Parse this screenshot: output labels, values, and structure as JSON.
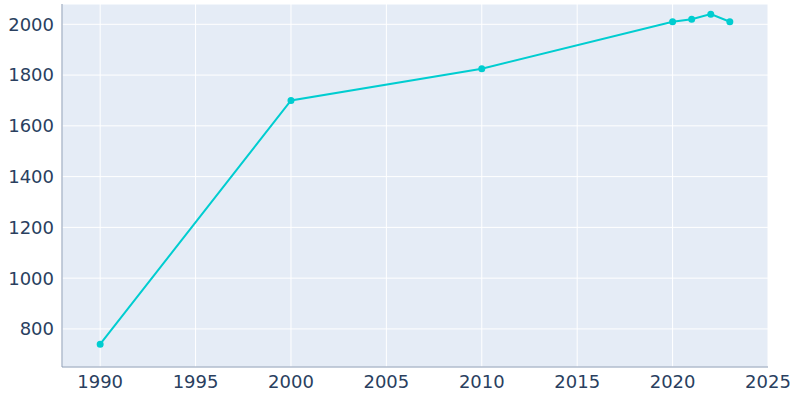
{
  "chart_data": {
    "type": "line",
    "x": [
      1990,
      2000,
      2010,
      2020,
      2021,
      2022,
      2023
    ],
    "values": [
      740,
      1700,
      1825,
      2010,
      2020,
      2040,
      2010
    ],
    "color": "#00cdd0",
    "marker": "circle",
    "xlim": [
      1988,
      2025
    ],
    "xticks": [
      1990,
      1995,
      2000,
      2005,
      2010,
      2015,
      2020,
      2025
    ],
    "ylim": [
      650,
      2080
    ],
    "yticks": [
      800,
      1000,
      1200,
      1400,
      1600,
      1800,
      2000
    ],
    "grid": true
  }
}
